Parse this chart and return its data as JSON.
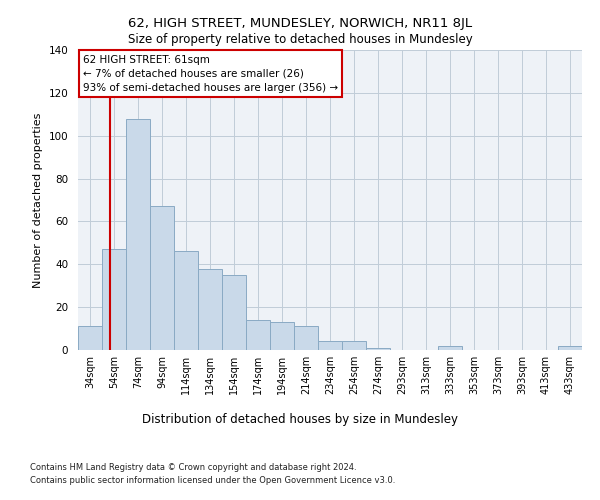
{
  "title1": "62, HIGH STREET, MUNDESLEY, NORWICH, NR11 8JL",
  "title2": "Size of property relative to detached houses in Mundesley",
  "xlabel": "Distribution of detached houses by size in Mundesley",
  "ylabel": "Number of detached properties",
  "bar_labels": [
    "34sqm",
    "54sqm",
    "74sqm",
    "94sqm",
    "114sqm",
    "134sqm",
    "154sqm",
    "174sqm",
    "194sqm",
    "214sqm",
    "234sqm",
    "254sqm",
    "274sqm",
    "293sqm",
    "313sqm",
    "333sqm",
    "353sqm",
    "373sqm",
    "393sqm",
    "413sqm",
    "433sqm"
  ],
  "bar_values": [
    11,
    47,
    108,
    67,
    46,
    38,
    35,
    14,
    13,
    11,
    4,
    4,
    1,
    0,
    0,
    2,
    0,
    0,
    0,
    0,
    2
  ],
  "bar_color": "#c9d9e9",
  "bar_edge_color": "#8aaac4",
  "property_line_x": 61,
  "property_line_label": "62 HIGH STREET: 61sqm",
  "annotation_line1": "← 7% of detached houses are smaller (26)",
  "annotation_line2": "93% of semi-detached houses are larger (356) →",
  "annotation_box_color": "#ffffff",
  "annotation_box_edge": "#cc0000",
  "vline_color": "#cc0000",
  "ylim": [
    0,
    140
  ],
  "yticks": [
    0,
    20,
    40,
    60,
    80,
    100,
    120,
    140
  ],
  "footnote1": "Contains HM Land Registry data © Crown copyright and database right 2024.",
  "footnote2": "Contains public sector information licensed under the Open Government Licence v3.0.",
  "bg_color": "#eef2f7",
  "fig_color": "#ffffff"
}
